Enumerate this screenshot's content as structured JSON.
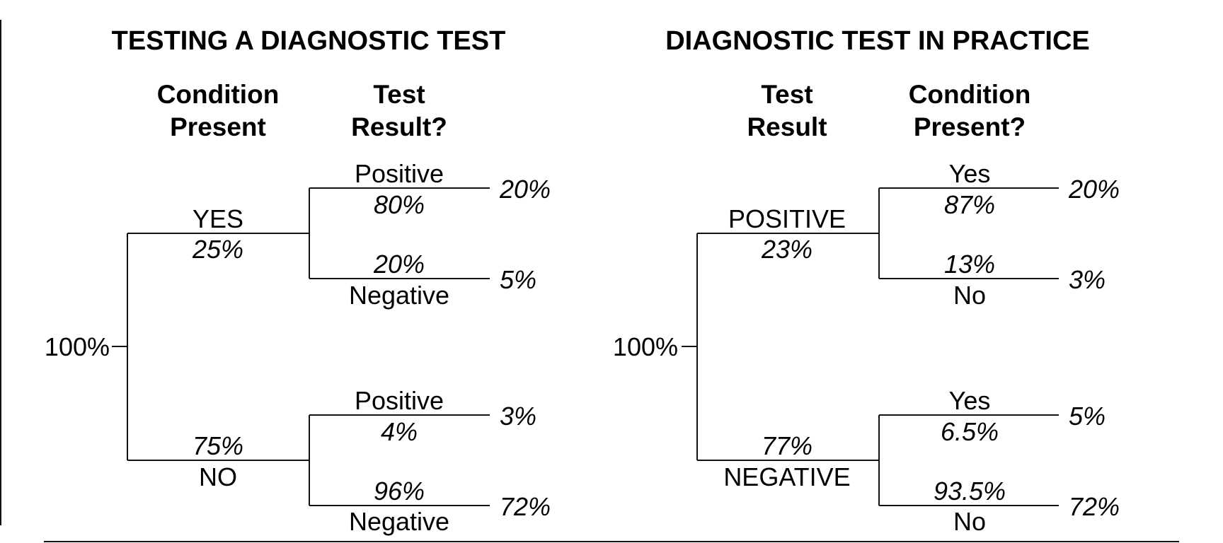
{
  "colors": {
    "line": "#111111",
    "text": "#000000",
    "background": "#ffffff"
  },
  "left_tree": {
    "title": "TESTING A DIAGNOSTIC TEST",
    "col1_header": [
      "Condition",
      "Present"
    ],
    "col2_header": [
      "Test",
      "Result?"
    ],
    "root_label": "100%",
    "top_branch": {
      "label": "YES",
      "pct": "25%"
    },
    "bottom_branch": {
      "label": "NO",
      "pct": "75%"
    },
    "top_top": {
      "label": "Positive",
      "pct": "80%",
      "final": "20%"
    },
    "top_bottom": {
      "label": "Negative",
      "pct": "20%",
      "final": "5%"
    },
    "bottom_top": {
      "label": "Positive",
      "pct": "4%",
      "final": "3%"
    },
    "bottom_bottom": {
      "label": "Negative",
      "pct": "96%",
      "final": "72%"
    }
  },
  "right_tree": {
    "title": "DIAGNOSTIC TEST IN PRACTICE",
    "col1_header": [
      "Test",
      "Result"
    ],
    "col2_header": [
      "Condition",
      "Present?"
    ],
    "root_label": "100%",
    "top_branch": {
      "label": "POSITIVE",
      "pct": "23%"
    },
    "bottom_branch": {
      "label": "NEGATIVE",
      "pct": "77%"
    },
    "top_top": {
      "label": "Yes",
      "pct": "87%",
      "final": "20%"
    },
    "top_bottom": {
      "label": "No",
      "pct": "13%",
      "final": "3%"
    },
    "bottom_top": {
      "label": "Yes",
      "pct": "6.5%",
      "final": "5%"
    },
    "bottom_bottom": {
      "label": "No",
      "pct": "93.5%",
      "final": "72%"
    }
  }
}
